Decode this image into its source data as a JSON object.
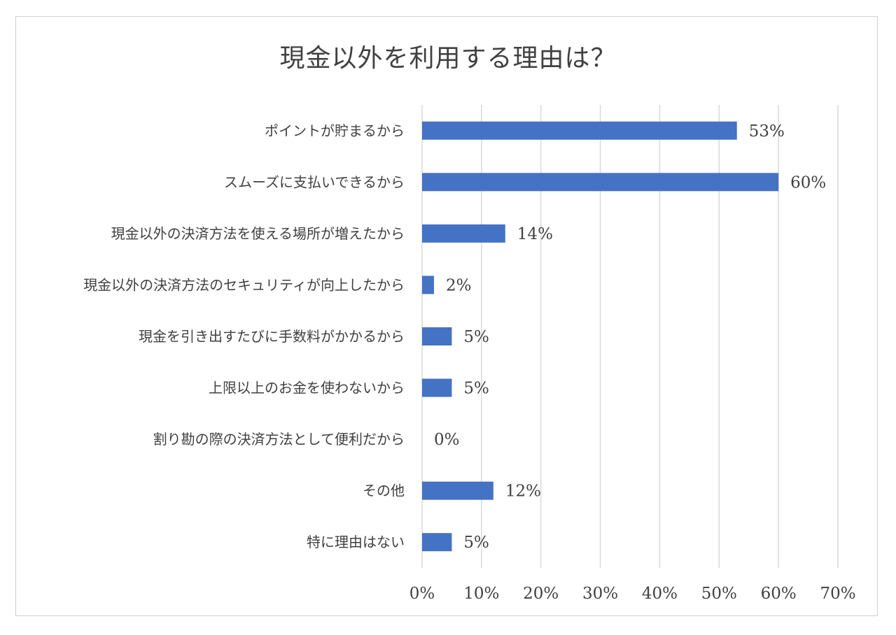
{
  "chart_data": {
    "type": "bar",
    "orientation": "horizontal",
    "title": "現金以外を利用する理由は？",
    "categories": [
      "ポイントが貯まるから",
      "スムーズに支払いできるから",
      "現金以外の決済方法を使える場所が増えたから",
      "現金以外の決済方法のセキュリティが向上したから",
      "現金を引き出すたびに手数料がかかるから",
      "上限以上のお金を使わないから",
      "割り勘の際の決済方法として便利だから",
      "その他",
      "特に理由はない"
    ],
    "values": [
      53,
      60,
      14,
      2,
      5,
      5,
      0,
      12,
      5
    ],
    "data_labels": [
      "53%",
      "60%",
      "14%",
      "2%",
      "5%",
      "5%",
      "0%",
      "12%",
      "5%"
    ],
    "x_ticks": [
      "0%",
      "10%",
      "20%",
      "30%",
      "40%",
      "50%",
      "60%",
      "70%"
    ],
    "xlim": [
      0,
      70
    ],
    "grid": true,
    "bar_color": "#4472c4",
    "grid_color": "#d9d9d9"
  }
}
